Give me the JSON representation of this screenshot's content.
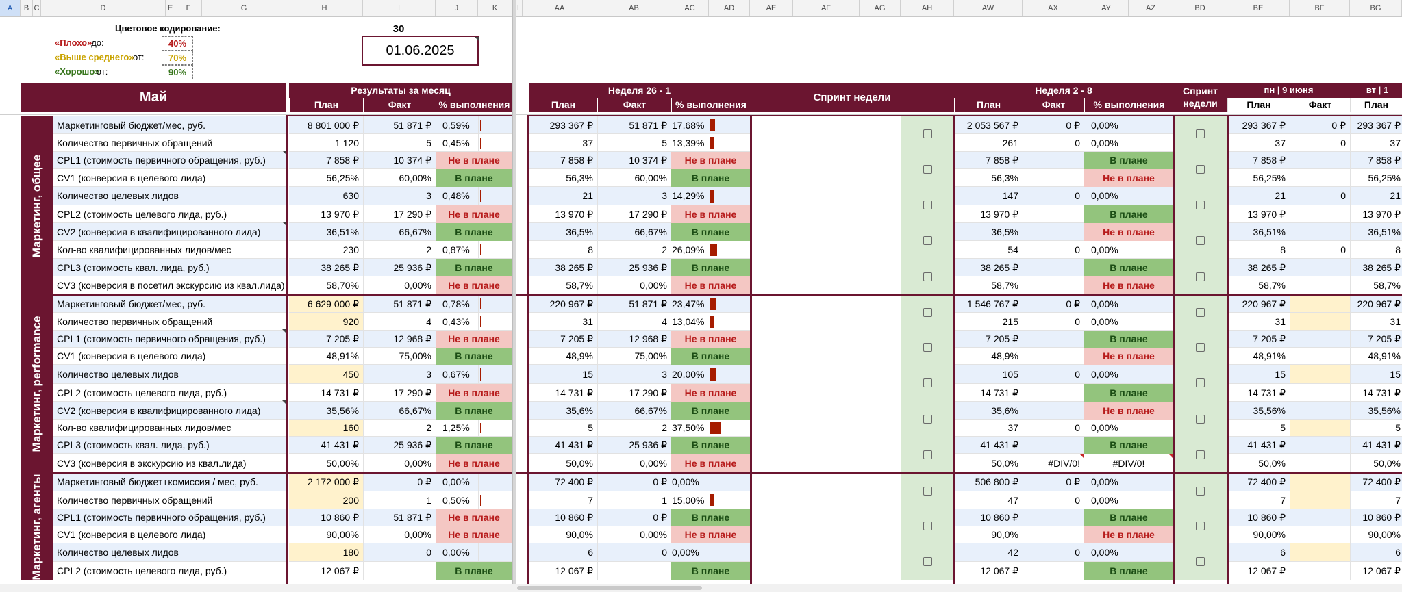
{
  "columns": [
    "A",
    "B",
    "C",
    "D",
    "E",
    "F",
    "G",
    "H",
    "I",
    "J",
    "K",
    "L",
    "AA",
    "AB",
    "AC",
    "AD",
    "AE",
    "AF",
    "AG",
    "AH",
    "AW",
    "AX",
    "AY",
    "AZ",
    "BD",
    "BE",
    "BF",
    "BG"
  ],
  "legend": {
    "title": "Цветовое кодирование:",
    "bad_label": "«Плохо»",
    "bad_suffix": " до:",
    "bad_value": "40%",
    "mid_label": "«Выше среднего»",
    "mid_suffix": " от:",
    "mid_value": "70%",
    "good_label": "«Хорошо»",
    "good_suffix": " от:",
    "good_value": "90%",
    "colors": {
      "bad": "#b71c1c",
      "mid": "#c9a300",
      "good": "#38761d"
    }
  },
  "day_count": "30",
  "report_date": "01.06.2025",
  "headers": {
    "month": "Май",
    "month_results": "Результаты за месяц",
    "plan": "План",
    "fact": "Факт",
    "pct": "% выполнения",
    "week1": "Неделя 26 - 1",
    "sprint_week": "Спринт недели",
    "week2": "Неделя 2 - 8",
    "sprint_week_short": "Спринт недели",
    "day1": "пн | 9 июня",
    "day2": "вт | 1"
  },
  "groups": [
    {
      "title": "Маркетинг, общее",
      "rows": [
        {
          "label": "Маркетинговый бюджет/мес, руб.",
          "mp": "8 801 000 ₽",
          "mf": "51 871 ₽",
          "mpct": "0,59%",
          "mbar": 0.59,
          "wp": "293 367 ₽",
          "wf": "51 871 ₽",
          "wpct": "17,68%",
          "wbar": 17.68,
          "w2p": "2 053 567 ₽",
          "w2f": "0 ₽",
          "w2pct": "0,00%",
          "dp": "293 367 ₽",
          "df": "0 ₽",
          "dp2": "293 367 ₽"
        },
        {
          "label": "Количество первичных обращений",
          "mp": "1 120",
          "mf": "5",
          "mpct": "0,45%",
          "mbar": 0.45,
          "wp": "37",
          "wf": "5",
          "wpct": "13,39%",
          "wbar": 13.39,
          "w2p": "261",
          "w2f": "0",
          "w2pct": "0,00%",
          "dp": "37",
          "df": "0",
          "dp2": "37"
        },
        {
          "label": "CPL1 (стоимость первичного обращения, руб.)",
          "mp": "7 858 ₽",
          "mf": "10 374 ₽",
          "mstatus": "Не в плане",
          "wp": "7 858 ₽",
          "wf": "10 374 ₽",
          "wstatus": "Не в плане",
          "w2p": "7 858 ₽",
          "w2f": "",
          "w2status": "В плане",
          "dp": "7 858 ₽",
          "df": "",
          "dp2": "7 858 ₽"
        },
        {
          "label": "CV1 (конверсия в целевого лида)",
          "mp": "56,25%",
          "mf": "60,00%",
          "mstatus": "В плане",
          "wp": "56,3%",
          "wf": "60,00%",
          "wstatus": "В плане",
          "w2p": "56,3%",
          "w2f": "",
          "w2status": "Не в плане",
          "dp": "56,25%",
          "df": "",
          "dp2": "56,25%"
        },
        {
          "label": "Количество целевых лидов",
          "mp": "630",
          "mf": "3",
          "mpct": "0,48%",
          "mbar": 0.48,
          "wp": "21",
          "wf": "3",
          "wpct": "14,29%",
          "wbar": 14.29,
          "w2p": "147",
          "w2f": "0",
          "w2pct": "0,00%",
          "dp": "21",
          "df": "0",
          "dp2": "21"
        },
        {
          "label": "CPL2 (стоимость целевого лида, руб.)",
          "mp": "13 970 ₽",
          "mf": "17 290 ₽",
          "mstatus": "Не в плане",
          "wp": "13 970 ₽",
          "wf": "17 290 ₽",
          "wstatus": "Не в плане",
          "w2p": "13 970 ₽",
          "w2f": "",
          "w2status": "В плане",
          "dp": "13 970 ₽",
          "df": "",
          "dp2": "13 970 ₽"
        },
        {
          "label": "CV2 (конверсия в квалифицированного лида)",
          "mp": "36,51%",
          "mf": "66,67%",
          "mstatus": "В плане",
          "wp": "36,5%",
          "wf": "66,67%",
          "wstatus": "В плане",
          "w2p": "36,5%",
          "w2f": "",
          "w2status": "Не в плане",
          "dp": "36,51%",
          "df": "",
          "dp2": "36,51%"
        },
        {
          "label": "Кол-во квалифицированных лидов/мес",
          "mp": "230",
          "mf": "2",
          "mpct": "0,87%",
          "mbar": 0.87,
          "wp": "8",
          "wf": "2",
          "wpct": "26,09%",
          "wbar": 26.09,
          "w2p": "54",
          "w2f": "0",
          "w2pct": "0,00%",
          "dp": "8",
          "df": "0",
          "dp2": "8"
        },
        {
          "label": "CPL3 (стоимость квал. лида, руб.)",
          "mp": "38 265 ₽",
          "mf": "25 936 ₽",
          "mstatus": "В плане",
          "wp": "38 265 ₽",
          "wf": "25 936 ₽",
          "wstatus": "В плане",
          "w2p": "38 265 ₽",
          "w2f": "",
          "w2status": "В плане",
          "dp": "38 265 ₽",
          "df": "",
          "dp2": "38 265 ₽"
        },
        {
          "label": "CV3 (конверсия в посетил экскурсию из квал.лида)",
          "mp": "58,70%",
          "mf": "0,00%",
          "mstatus": "Не в плане",
          "wp": "58,7%",
          "wf": "0,00%",
          "wstatus": "Не в плане",
          "w2p": "58,7%",
          "w2f": "",
          "w2status": "Не в плане",
          "dp": "58,7%",
          "df": "",
          "dp2": "58,7%"
        }
      ]
    },
    {
      "title": "Маркетинг, performance",
      "rows": [
        {
          "label": "Маркетинговый бюджет/мес, руб.",
          "mp": "6 629 000 ₽",
          "mf": "51 871 ₽",
          "mpct": "0,78%",
          "mbar": 0.78,
          "mhl": true,
          "wp": "220 967 ₽",
          "wf": "51 871 ₽",
          "wpct": "23,47%",
          "wbar": 23.47,
          "w2p": "1 546 767 ₽",
          "w2f": "0 ₽",
          "w2pct": "0,00%",
          "dp": "220 967 ₽",
          "df": "",
          "dp2": "220 967 ₽",
          "dfhl": true
        },
        {
          "label": "Количество первичных обращений",
          "mp": "920",
          "mf": "4",
          "mpct": "0,43%",
          "mbar": 0.43,
          "mhl": true,
          "wp": "31",
          "wf": "4",
          "wpct": "13,04%",
          "wbar": 13.04,
          "w2p": "215",
          "w2f": "0",
          "w2pct": "0,00%",
          "dp": "31",
          "df": "",
          "dp2": "31",
          "dfhl": true
        },
        {
          "label": "CPL1 (стоимость первичного обращения, руб.)",
          "mp": "7 205 ₽",
          "mf": "12 968 ₽",
          "mstatus": "Не в плане",
          "wp": "7 205 ₽",
          "wf": "12 968 ₽",
          "wstatus": "Не в плане",
          "w2p": "7 205 ₽",
          "w2f": "",
          "w2status": "В плане",
          "dp": "7 205 ₽",
          "df": "",
          "dp2": "7 205 ₽"
        },
        {
          "label": "CV1 (конверсия в целевого лида)",
          "mp": "48,91%",
          "mf": "75,00%",
          "mstatus": "В плане",
          "wp": "48,9%",
          "wf": "75,00%",
          "wstatus": "В плане",
          "w2p": "48,9%",
          "w2f": "",
          "w2status": "Не в плане",
          "dp": "48,91%",
          "df": "",
          "dp2": "48,91%"
        },
        {
          "label": "Количество целевых лидов",
          "mp": "450",
          "mf": "3",
          "mpct": "0,67%",
          "mbar": 0.67,
          "mhl": true,
          "wp": "15",
          "wf": "3",
          "wpct": "20,00%",
          "wbar": 20.0,
          "w2p": "105",
          "w2f": "0",
          "w2pct": "0,00%",
          "dp": "15",
          "df": "",
          "dp2": "15",
          "dfhl": true
        },
        {
          "label": "CPL2 (стоимость целевого лида, руб.)",
          "mp": "14 731 ₽",
          "mf": "17 290 ₽",
          "mstatus": "Не в плане",
          "wp": "14 731 ₽",
          "wf": "17 290 ₽",
          "wstatus": "Не в плане",
          "w2p": "14 731 ₽",
          "w2f": "",
          "w2status": "В плане",
          "dp": "14 731 ₽",
          "df": "",
          "dp2": "14 731 ₽"
        },
        {
          "label": "CV2 (конверсия в квалифицированного лида)",
          "mp": "35,56%",
          "mf": "66,67%",
          "mstatus": "В плане",
          "wp": "35,6%",
          "wf": "66,67%",
          "wstatus": "В плане",
          "w2p": "35,6%",
          "w2f": "",
          "w2status": "Не в плане",
          "dp": "35,56%",
          "df": "",
          "dp2": "35,56%"
        },
        {
          "label": "Кол-во квалифицированных лидов/мес",
          "mp": "160",
          "mf": "2",
          "mpct": "1,25%",
          "mbar": 1.25,
          "mhl": true,
          "wp": "5",
          "wf": "2",
          "wpct": "37,50%",
          "wbar": 37.5,
          "w2p": "37",
          "w2f": "0",
          "w2pct": "0,00%",
          "dp": "5",
          "df": "",
          "dp2": "5",
          "dfhl": true
        },
        {
          "label": "CPL3 (стоимость квал. лида, руб.)",
          "mp": "41 431 ₽",
          "mf": "25 936 ₽",
          "mstatus": "В плане",
          "wp": "41 431 ₽",
          "wf": "25 936 ₽",
          "wstatus": "В плане",
          "w2p": "41 431 ₽",
          "w2f": "",
          "w2status": "В плане",
          "dp": "41 431 ₽",
          "df": "",
          "dp2": "41 431 ₽"
        },
        {
          "label": "CV3 (конверсия в экскурсию из квал.лида)",
          "mp": "50,00%",
          "mf": "0,00%",
          "mstatus": "Не в плане",
          "wp": "50,0%",
          "wf": "0,00%",
          "wstatus": "Не в плане",
          "w2p": "50,0%",
          "w2f": "#DIV/0!",
          "w2status": "#DIV/0!",
          "w2plain": true,
          "dp": "50,0%",
          "df": "",
          "dp2": "50,0%"
        }
      ]
    },
    {
      "title": "Маркетинг, агенты",
      "rows": [
        {
          "label": "Маркетинговый бюджет+комиссия / мес, руб.",
          "mp": "2 172 000 ₽",
          "mf": "0 ₽",
          "mpct": "0,00%",
          "mbar": 0,
          "mhl": true,
          "wp": "72 400 ₽",
          "wf": "0 ₽",
          "wpct": "0,00%",
          "wbar": 0,
          "w2p": "506 800 ₽",
          "w2f": "0 ₽",
          "w2pct": "0,00%",
          "dp": "72 400 ₽",
          "df": "",
          "dp2": "72 400 ₽",
          "dfhl": true
        },
        {
          "label": "Количество первичных обращений",
          "mp": "200",
          "mf": "1",
          "mpct": "0,50%",
          "mbar": 0.5,
          "mhl": true,
          "wp": "7",
          "wf": "1",
          "wpct": "15,00%",
          "wbar": 15.0,
          "w2p": "47",
          "w2f": "0",
          "w2pct": "0,00%",
          "dp": "7",
          "df": "",
          "dp2": "7",
          "dfhl": true
        },
        {
          "label": "CPL1 (стоимость первичного обращения, руб.)",
          "mp": "10 860 ₽",
          "mf": "51 871 ₽",
          "mstatus": "Не в плане",
          "wp": "10 860 ₽",
          "wf": "0 ₽",
          "wstatus": "В плане",
          "w2p": "10 860 ₽",
          "w2f": "",
          "w2status": "В плане",
          "dp": "10 860 ₽",
          "df": "",
          "dp2": "10 860 ₽"
        },
        {
          "label": "CV1 (конверсия в целевого лида)",
          "mp": "90,00%",
          "mf": "0,00%",
          "mstatus": "Не в плане",
          "wp": "90,0%",
          "wf": "0,00%",
          "wstatus": "Не в плане",
          "w2p": "90,0%",
          "w2f": "",
          "w2status": "Не в плане",
          "dp": "90,00%",
          "df": "",
          "dp2": "90,00%"
        },
        {
          "label": "Количество целевых лидов",
          "mp": "180",
          "mf": "0",
          "mpct": "0,00%",
          "mbar": 0,
          "mhl": true,
          "wp": "6",
          "wf": "0",
          "wpct": "0,00%",
          "wbar": 0,
          "w2p": "42",
          "w2f": "0",
          "w2pct": "0,00%",
          "dp": "6",
          "df": "",
          "dp2": "6",
          "dfhl": true
        },
        {
          "label": "CPL2 (стоимость целевого лида, руб.)",
          "mp": "12 067 ₽",
          "mf": "",
          "mstatus": "В плане",
          "wp": "12 067 ₽",
          "wf": "",
          "wstatus": "В плане",
          "w2p": "12 067 ₽",
          "w2f": "",
          "w2status": "В плане",
          "dp": "12 067 ₽",
          "df": "",
          "dp2": "12 067 ₽"
        }
      ]
    }
  ]
}
